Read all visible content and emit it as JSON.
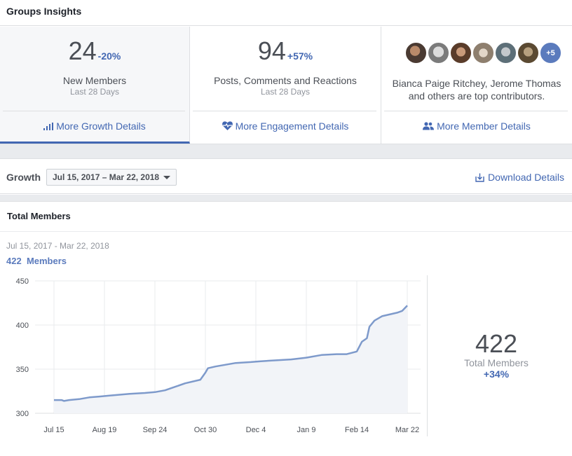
{
  "header": {
    "title": "Groups Insights"
  },
  "cards": {
    "growth": {
      "value": "24",
      "change": "-20%",
      "label": "New Members",
      "period": "Last 28 Days",
      "link": "More Growth Details"
    },
    "engagement": {
      "value": "94",
      "change": "+57%",
      "label": "Posts, Comments and Reactions",
      "period": "Last 28 Days",
      "link": "More Engagement Details"
    },
    "members": {
      "avatars_extra": "+5",
      "contributors_line1": "Bianca Paige Ritchey, Jerome Thomas",
      "contributors_line2": "and others are top contributors.",
      "link": "More Member Details"
    }
  },
  "growth_bar": {
    "title": "Growth",
    "date_range": "Jul 15, 2017 – Mar 22, 2018",
    "download": "Download Details"
  },
  "panel": {
    "title": "Total Members",
    "range": "Jul 15, 2017 - Mar 22, 2018",
    "members_count": "422",
    "members_label": "Members"
  },
  "summary": {
    "value": "422",
    "label": "Total Members",
    "change": "+34%"
  },
  "colors": {
    "accent": "#4267b2",
    "line": "#7e9acb",
    "fill": "#f2f4f8"
  },
  "chart_data": {
    "type": "area",
    "title": "",
    "xlabel": "",
    "ylabel": "",
    "ylim": [
      300,
      450
    ],
    "yticks": [
      300,
      350,
      400,
      450
    ],
    "xticks": [
      "Jul 15",
      "Aug 19",
      "Sep 24",
      "Oct 30",
      "Dec 4",
      "Jan 9",
      "Feb 14",
      "Mar 22"
    ],
    "grid": true,
    "series": [
      {
        "values": [
          {
            "x": 0,
            "y": 315
          },
          {
            "x": 0.15,
            "y": 315
          },
          {
            "x": 0.2,
            "y": 314
          },
          {
            "x": 0.3,
            "y": 315
          },
          {
            "x": 0.5,
            "y": 316
          },
          {
            "x": 0.7,
            "y": 318
          },
          {
            "x": 0.9,
            "y": 319
          },
          {
            "x": 1.1,
            "y": 320
          },
          {
            "x": 1.3,
            "y": 321
          },
          {
            "x": 1.5,
            "y": 322
          },
          {
            "x": 1.8,
            "y": 323
          },
          {
            "x": 2.0,
            "y": 324
          },
          {
            "x": 2.2,
            "y": 326
          },
          {
            "x": 2.4,
            "y": 330
          },
          {
            "x": 2.6,
            "y": 334
          },
          {
            "x": 2.9,
            "y": 338
          },
          {
            "x": 3.0,
            "y": 346
          },
          {
            "x": 3.05,
            "y": 351
          },
          {
            "x": 3.2,
            "y": 353
          },
          {
            "x": 3.4,
            "y": 355
          },
          {
            "x": 3.6,
            "y": 357
          },
          {
            "x": 3.9,
            "y": 358
          },
          {
            "x": 4.1,
            "y": 359
          },
          {
            "x": 4.4,
            "y": 360
          },
          {
            "x": 4.7,
            "y": 361
          },
          {
            "x": 5.0,
            "y": 363
          },
          {
            "x": 5.3,
            "y": 366
          },
          {
            "x": 5.6,
            "y": 367
          },
          {
            "x": 5.8,
            "y": 367
          },
          {
            "x": 6.0,
            "y": 370
          },
          {
            "x": 6.1,
            "y": 381
          },
          {
            "x": 6.2,
            "y": 385
          },
          {
            "x": 6.25,
            "y": 398
          },
          {
            "x": 6.35,
            "y": 405
          },
          {
            "x": 6.5,
            "y": 410
          },
          {
            "x": 6.65,
            "y": 412
          },
          {
            "x": 6.8,
            "y": 414
          },
          {
            "x": 6.9,
            "y": 416
          },
          {
            "x": 7.0,
            "y": 422
          }
        ]
      }
    ]
  }
}
